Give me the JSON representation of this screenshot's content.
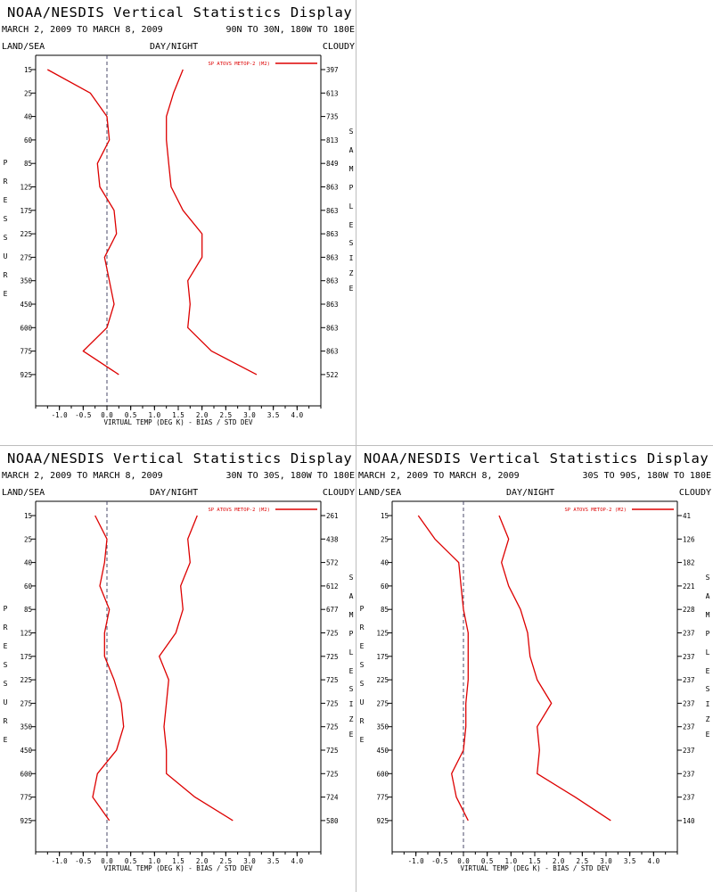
{
  "page_title": "NOAA/NESDIS Vertical Statistics Display",
  "colors": {
    "series": "#dd0000",
    "axis": "#000000",
    "zero_line": "#4a4a6a",
    "divider": "#bdbdbd"
  },
  "common": {
    "date_range": "MARCH 2, 2009 TO MARCH 8, 2009",
    "col_left": "LAND/SEA",
    "col_mid": "DAY/NIGHT",
    "col_right": "CLOUDY",
    "legend": "SP ATOVS METOP-2 (M2)",
    "xlabel": "VIRTUAL TEMP (DEG K) - BIAS / STD DEV",
    "ylabel_left": "PRESSURE",
    "ylabel_right_1": "SAMPLE",
    "ylabel_right_2": "SIZE",
    "x_ticks": [
      "-1.0",
      "-0.5",
      "0.0",
      "0.5",
      "1.0",
      "1.5",
      "2.0",
      "2.5",
      "3.0",
      "3.5",
      "4.0"
    ],
    "y_ticks": [
      "15",
      "25",
      "40",
      "60",
      "85",
      "125",
      "175",
      "225",
      "275",
      "350",
      "450",
      "600",
      "775",
      "925"
    ]
  },
  "chart_data": [
    {
      "type": "line",
      "title": "NOAA/NESDIS Vertical Statistics Display",
      "region": "90N TO 30N, 180W TO 180E",
      "xlabel": "VIRTUAL TEMP (DEG K) - BIAS / STD DEV",
      "ylabel": "PRESSURE",
      "xlim": [
        -1.5,
        4.5
      ],
      "pressure": [
        15,
        25,
        40,
        60,
        85,
        125,
        175,
        225,
        275,
        350,
        450,
        600,
        775,
        925
      ],
      "sample_size": [
        "397",
        "613",
        "735",
        "813",
        "849",
        "863",
        "863",
        "863",
        "863",
        "863",
        "863",
        "863",
        "863",
        "522"
      ],
      "series": [
        {
          "name": "SP ATOVS METOP-2 (M2)",
          "metric": "bias",
          "values": [
            -1.25,
            -0.35,
            0.0,
            0.05,
            -0.2,
            -0.15,
            0.15,
            0.2,
            -0.05,
            0.05,
            0.15,
            0.0,
            -0.5,
            0.25
          ]
        },
        {
          "name": "SP ATOVS METOP-2 (M2)",
          "metric": "std_dev",
          "values": [
            1.6,
            1.4,
            1.25,
            1.25,
            1.3,
            1.35,
            1.6,
            2.0,
            2.0,
            1.7,
            1.75,
            1.7,
            2.2,
            3.15
          ]
        }
      ]
    },
    {
      "type": "line",
      "title": "NOAA/NESDIS Vertical Statistics Display",
      "region": "30N TO 30S, 180W TO 180E",
      "xlabel": "VIRTUAL TEMP (DEG K) - BIAS / STD DEV",
      "ylabel": "PRESSURE",
      "xlim": [
        -1.5,
        4.5
      ],
      "pressure": [
        15,
        25,
        40,
        60,
        85,
        125,
        175,
        225,
        275,
        350,
        450,
        600,
        775,
        925
      ],
      "sample_size": [
        "261",
        "438",
        "572",
        "612",
        "677",
        "725",
        "725",
        "725",
        "725",
        "725",
        "725",
        "725",
        "724",
        "580"
      ],
      "series": [
        {
          "name": "SP ATOVS METOP-2 (M2)",
          "metric": "bias",
          "values": [
            -0.25,
            0.0,
            -0.05,
            -0.15,
            0.05,
            -0.05,
            -0.05,
            0.15,
            0.3,
            0.35,
            0.2,
            -0.2,
            -0.3,
            0.05
          ]
        },
        {
          "name": "SP ATOVS METOP-2 (M2)",
          "metric": "std_dev",
          "values": [
            1.9,
            1.7,
            1.75,
            1.55,
            1.6,
            1.45,
            1.1,
            1.3,
            1.25,
            1.2,
            1.25,
            1.25,
            1.85,
            2.65
          ]
        }
      ]
    },
    {
      "type": "line",
      "title": "NOAA/NESDIS Vertical Statistics Display",
      "region": "30S TO 90S, 180W TO 180E",
      "xlabel": "VIRTUAL TEMP (DEG K) - BIAS / STD DEV",
      "ylabel": "PRESSURE",
      "xlim": [
        -1.5,
        4.5
      ],
      "pressure": [
        15,
        25,
        40,
        60,
        85,
        125,
        175,
        225,
        275,
        350,
        450,
        600,
        775,
        925
      ],
      "sample_size": [
        "41",
        "126",
        "182",
        "221",
        "228",
        "237",
        "237",
        "237",
        "237",
        "237",
        "237",
        "237",
        "237",
        "140"
      ],
      "series": [
        {
          "name": "SP ATOVS METOP-2 (M2)",
          "metric": "bias",
          "values": [
            -0.95,
            -0.6,
            -0.1,
            -0.05,
            0.0,
            0.1,
            0.1,
            0.1,
            0.05,
            0.05,
            0.0,
            -0.25,
            -0.15,
            0.1
          ]
        },
        {
          "name": "SP ATOVS METOP-2 (M2)",
          "metric": "std_dev",
          "values": [
            0.75,
            0.95,
            0.8,
            0.95,
            1.2,
            1.35,
            1.4,
            1.55,
            1.85,
            1.55,
            1.6,
            1.55,
            2.35,
            3.1
          ]
        }
      ]
    }
  ]
}
